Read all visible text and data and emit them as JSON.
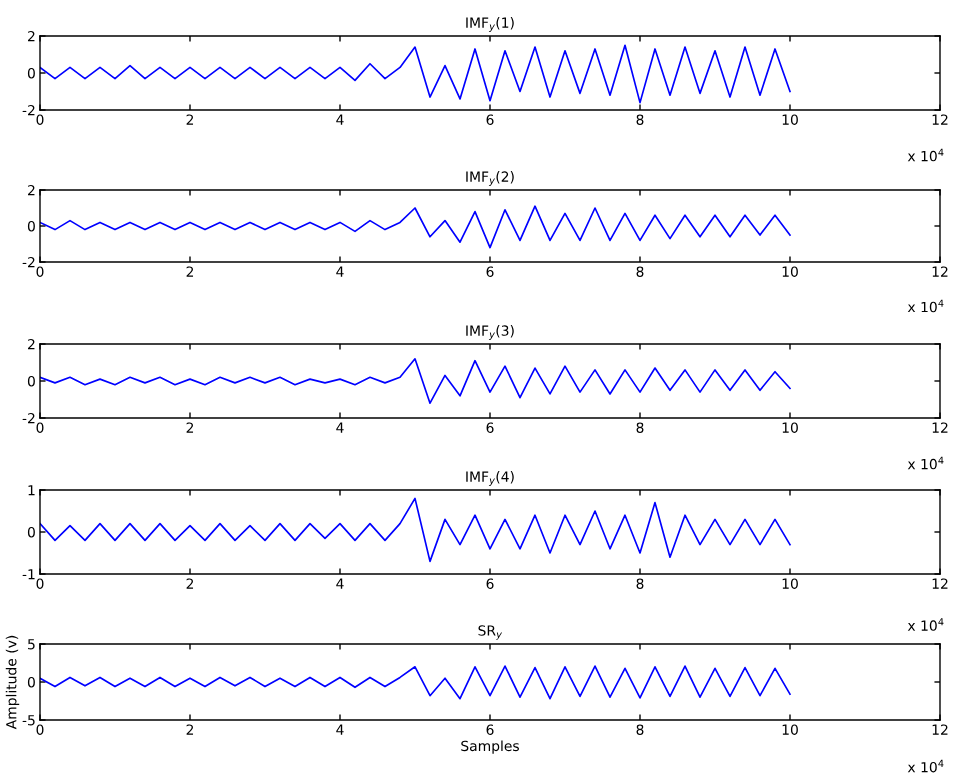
{
  "chart_data": [
    {
      "type": "line",
      "title": "IMF$_{y}$(1)",
      "annotations": [
        "x 10$^{4}$"
      ],
      "x": [
        0,
        0.2,
        0.4,
        0.6,
        0.8,
        1,
        1.2,
        1.4,
        1.6,
        1.8,
        2,
        2.2,
        2.4,
        2.6,
        2.8,
        3,
        3.2,
        3.4,
        3.6,
        3.8,
        4,
        4.2,
        4.4,
        4.6,
        4.8,
        5,
        5.2,
        5.4,
        5.6,
        5.8,
        6,
        6.2,
        6.4,
        6.6,
        6.8,
        7,
        7.2,
        7.4,
        7.6,
        7.8,
        8,
        8.2,
        8.4,
        8.6,
        8.8,
        9,
        9.2,
        9.4,
        9.6,
        9.8,
        10
      ],
      "series": [
        {
          "color": "#0000ff",
          "values": [
            0.3,
            -0.3,
            0.3,
            -0.3,
            0.3,
            -0.3,
            0.4,
            -0.3,
            0.3,
            -0.3,
            0.3,
            -0.3,
            0.3,
            -0.3,
            0.3,
            -0.3,
            0.3,
            -0.3,
            0.3,
            -0.3,
            0.3,
            -0.4,
            0.5,
            -0.3,
            0.3,
            1.4,
            -1.3,
            0.4,
            -1.4,
            1.3,
            -1.5,
            1.2,
            -1.0,
            1.4,
            -1.3,
            1.2,
            -1.1,
            1.3,
            -1.2,
            1.5,
            -1.6,
            1.3,
            -1.2,
            1.4,
            -1.1,
            1.2,
            -1.3,
            1.4,
            -1.2,
            1.3,
            -1.0
          ]
        }
      ],
      "xlim": [
        0,
        12
      ],
      "xticks": [
        0,
        2,
        4,
        6,
        8,
        10,
        12
      ],
      "ylim": [
        -2,
        2
      ],
      "yticks": [
        -2,
        0,
        2
      ],
      "grid": false,
      "legend": false
    },
    {
      "type": "line",
      "title": "IMF$_{y}$(2)",
      "annotations": [
        "x 10$^{4}$"
      ],
      "x": [
        0,
        0.2,
        0.4,
        0.6,
        0.8,
        1,
        1.2,
        1.4,
        1.6,
        1.8,
        2,
        2.2,
        2.4,
        2.6,
        2.8,
        3,
        3.2,
        3.4,
        3.6,
        3.8,
        4,
        4.2,
        4.4,
        4.6,
        4.8,
        5,
        5.2,
        5.4,
        5.6,
        5.8,
        6,
        6.2,
        6.4,
        6.6,
        6.8,
        7,
        7.2,
        7.4,
        7.6,
        7.8,
        8,
        8.2,
        8.4,
        8.6,
        8.8,
        9,
        9.2,
        9.4,
        9.6,
        9.8,
        10
      ],
      "series": [
        {
          "color": "#0000ff",
          "values": [
            0.2,
            -0.2,
            0.3,
            -0.2,
            0.2,
            -0.2,
            0.2,
            -0.2,
            0.2,
            -0.2,
            0.2,
            -0.2,
            0.2,
            -0.2,
            0.2,
            -0.2,
            0.2,
            -0.2,
            0.2,
            -0.2,
            0.2,
            -0.3,
            0.3,
            -0.2,
            0.2,
            1.0,
            -0.6,
            0.3,
            -0.9,
            0.8,
            -1.2,
            0.9,
            -0.8,
            1.1,
            -0.8,
            0.7,
            -0.8,
            1.0,
            -0.8,
            0.7,
            -0.8,
            0.6,
            -0.7,
            0.6,
            -0.6,
            0.6,
            -0.6,
            0.6,
            -0.5,
            0.6,
            -0.5
          ]
        }
      ],
      "xlim": [
        0,
        12
      ],
      "xticks": [
        0,
        2,
        4,
        6,
        8,
        10,
        12
      ],
      "ylim": [
        -2,
        2
      ],
      "yticks": [
        -2,
        0,
        2
      ],
      "grid": false,
      "legend": false
    },
    {
      "type": "line",
      "title": "IMF$_{y}$(3)",
      "annotations": [
        "x 10$^{4}$"
      ],
      "x": [
        0,
        0.2,
        0.4,
        0.6,
        0.8,
        1,
        1.2,
        1.4,
        1.6,
        1.8,
        2,
        2.2,
        2.4,
        2.6,
        2.8,
        3,
        3.2,
        3.4,
        3.6,
        3.8,
        4,
        4.2,
        4.4,
        4.6,
        4.8,
        5,
        5.2,
        5.4,
        5.6,
        5.8,
        6,
        6.2,
        6.4,
        6.6,
        6.8,
        7,
        7.2,
        7.4,
        7.6,
        7.8,
        8,
        8.2,
        8.4,
        8.6,
        8.8,
        9,
        9.2,
        9.4,
        9.6,
        9.8,
        10
      ],
      "series": [
        {
          "color": "#0000ff",
          "values": [
            0.2,
            -0.1,
            0.2,
            -0.2,
            0.1,
            -0.2,
            0.2,
            -0.1,
            0.2,
            -0.2,
            0.1,
            -0.2,
            0.2,
            -0.1,
            0.2,
            -0.1,
            0.2,
            -0.2,
            0.1,
            -0.1,
            0.1,
            -0.2,
            0.2,
            -0.1,
            0.2,
            1.2,
            -1.2,
            0.3,
            -0.8,
            1.1,
            -0.6,
            0.8,
            -0.9,
            0.7,
            -0.7,
            0.8,
            -0.6,
            0.6,
            -0.7,
            0.6,
            -0.6,
            0.7,
            -0.5,
            0.6,
            -0.6,
            0.6,
            -0.5,
            0.6,
            -0.5,
            0.5,
            -0.4
          ]
        }
      ],
      "xlim": [
        0,
        12
      ],
      "xticks": [
        0,
        2,
        4,
        6,
        8,
        10,
        12
      ],
      "ylim": [
        -2,
        2
      ],
      "yticks": [
        -2,
        0,
        2
      ],
      "grid": false,
      "legend": false
    },
    {
      "type": "line",
      "title": "IMF$_{y}$(4)",
      "annotations": [
        "x 10$^{4}$"
      ],
      "x": [
        0,
        0.2,
        0.4,
        0.6,
        0.8,
        1,
        1.2,
        1.4,
        1.6,
        1.8,
        2,
        2.2,
        2.4,
        2.6,
        2.8,
        3,
        3.2,
        3.4,
        3.6,
        3.8,
        4,
        4.2,
        4.4,
        4.6,
        4.8,
        5,
        5.2,
        5.4,
        5.6,
        5.8,
        6,
        6.2,
        6.4,
        6.6,
        6.8,
        7,
        7.2,
        7.4,
        7.6,
        7.8,
        8,
        8.2,
        8.4,
        8.6,
        8.8,
        9,
        9.2,
        9.4,
        9.6,
        9.8,
        10
      ],
      "series": [
        {
          "color": "#0000ff",
          "values": [
            0.2,
            -0.2,
            0.15,
            -0.2,
            0.2,
            -0.2,
            0.2,
            -0.2,
            0.2,
            -0.2,
            0.15,
            -0.2,
            0.2,
            -0.2,
            0.15,
            -0.2,
            0.2,
            -0.2,
            0.2,
            -0.15,
            0.2,
            -0.2,
            0.2,
            -0.2,
            0.2,
            0.8,
            -0.7,
            0.3,
            -0.3,
            0.4,
            -0.4,
            0.3,
            -0.4,
            0.4,
            -0.5,
            0.4,
            -0.3,
            0.5,
            -0.4,
            0.4,
            -0.5,
            0.7,
            -0.6,
            0.4,
            -0.3,
            0.3,
            -0.3,
            0.3,
            -0.3,
            0.3,
            -0.3
          ]
        }
      ],
      "xlim": [
        0,
        12
      ],
      "xticks": [
        0,
        2,
        4,
        6,
        8,
        10,
        12
      ],
      "ylim": [
        -1,
        1
      ],
      "yticks": [
        -1,
        0,
        1
      ],
      "grid": false,
      "legend": false
    },
    {
      "type": "line",
      "title": "SR$_{y}$",
      "xlabel": "Samples",
      "ylabel": "Amplitude (v)",
      "annotations": [
        "x 10$^{4}$"
      ],
      "x": [
        0,
        0.2,
        0.4,
        0.6,
        0.8,
        1,
        1.2,
        1.4,
        1.6,
        1.8,
        2,
        2.2,
        2.4,
        2.6,
        2.8,
        3,
        3.2,
        3.4,
        3.6,
        3.8,
        4,
        4.2,
        4.4,
        4.6,
        4.8,
        5,
        5.2,
        5.4,
        5.6,
        5.8,
        6,
        6.2,
        6.4,
        6.6,
        6.8,
        7,
        7.2,
        7.4,
        7.6,
        7.8,
        8,
        8.2,
        8.4,
        8.6,
        8.8,
        9,
        9.2,
        9.4,
        9.6,
        9.8,
        10
      ],
      "series": [
        {
          "color": "#0000ff",
          "values": [
            0.5,
            -0.6,
            0.6,
            -0.5,
            0.6,
            -0.6,
            0.5,
            -0.6,
            0.6,
            -0.6,
            0.5,
            -0.6,
            0.6,
            -0.5,
            0.6,
            -0.6,
            0.5,
            -0.6,
            0.6,
            -0.6,
            0.6,
            -0.7,
            0.6,
            -0.6,
            0.6,
            2.0,
            -1.8,
            0.5,
            -2.2,
            2.0,
            -1.8,
            2.1,
            -2.0,
            1.9,
            -2.2,
            2.0,
            -1.9,
            2.1,
            -2.0,
            1.8,
            -2.1,
            2.0,
            -1.9,
            2.1,
            -2.0,
            1.8,
            -1.9,
            1.9,
            -1.8,
            1.8,
            -1.6
          ]
        }
      ],
      "xlim": [
        0,
        12
      ],
      "xticks": [
        0,
        2,
        4,
        6,
        8,
        10,
        12
      ],
      "ylim": [
        -5,
        5
      ],
      "yticks": [
        -5,
        0,
        5
      ],
      "grid": false,
      "legend": false
    }
  ]
}
